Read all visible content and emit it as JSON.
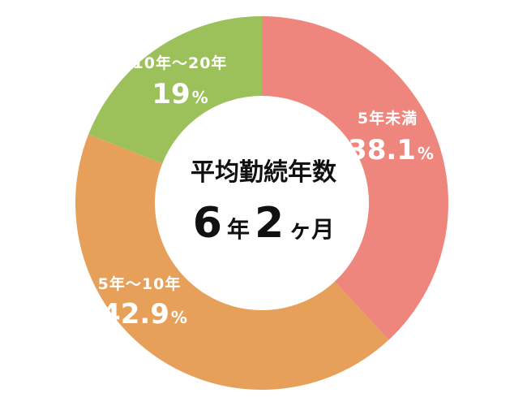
{
  "chart_data": {
    "type": "pie",
    "title": "",
    "center_label": {
      "title": "平均勤続年数",
      "years": "6",
      "year_unit": "年",
      "months": "2",
      "month_unit": "ヶ月"
    },
    "slices": [
      {
        "label": "5年未満",
        "value": 38.1,
        "value_text": "38.1",
        "unit": "%",
        "color": "#ee867d"
      },
      {
        "label": "5年～10年",
        "value": 42.9,
        "value_text": "42.9",
        "unit": "%",
        "color": "#e7a05a"
      },
      {
        "label": "10年～20年",
        "value": 19,
        "value_text": "19",
        "unit": "%",
        "color": "#9cc15a"
      }
    ]
  }
}
